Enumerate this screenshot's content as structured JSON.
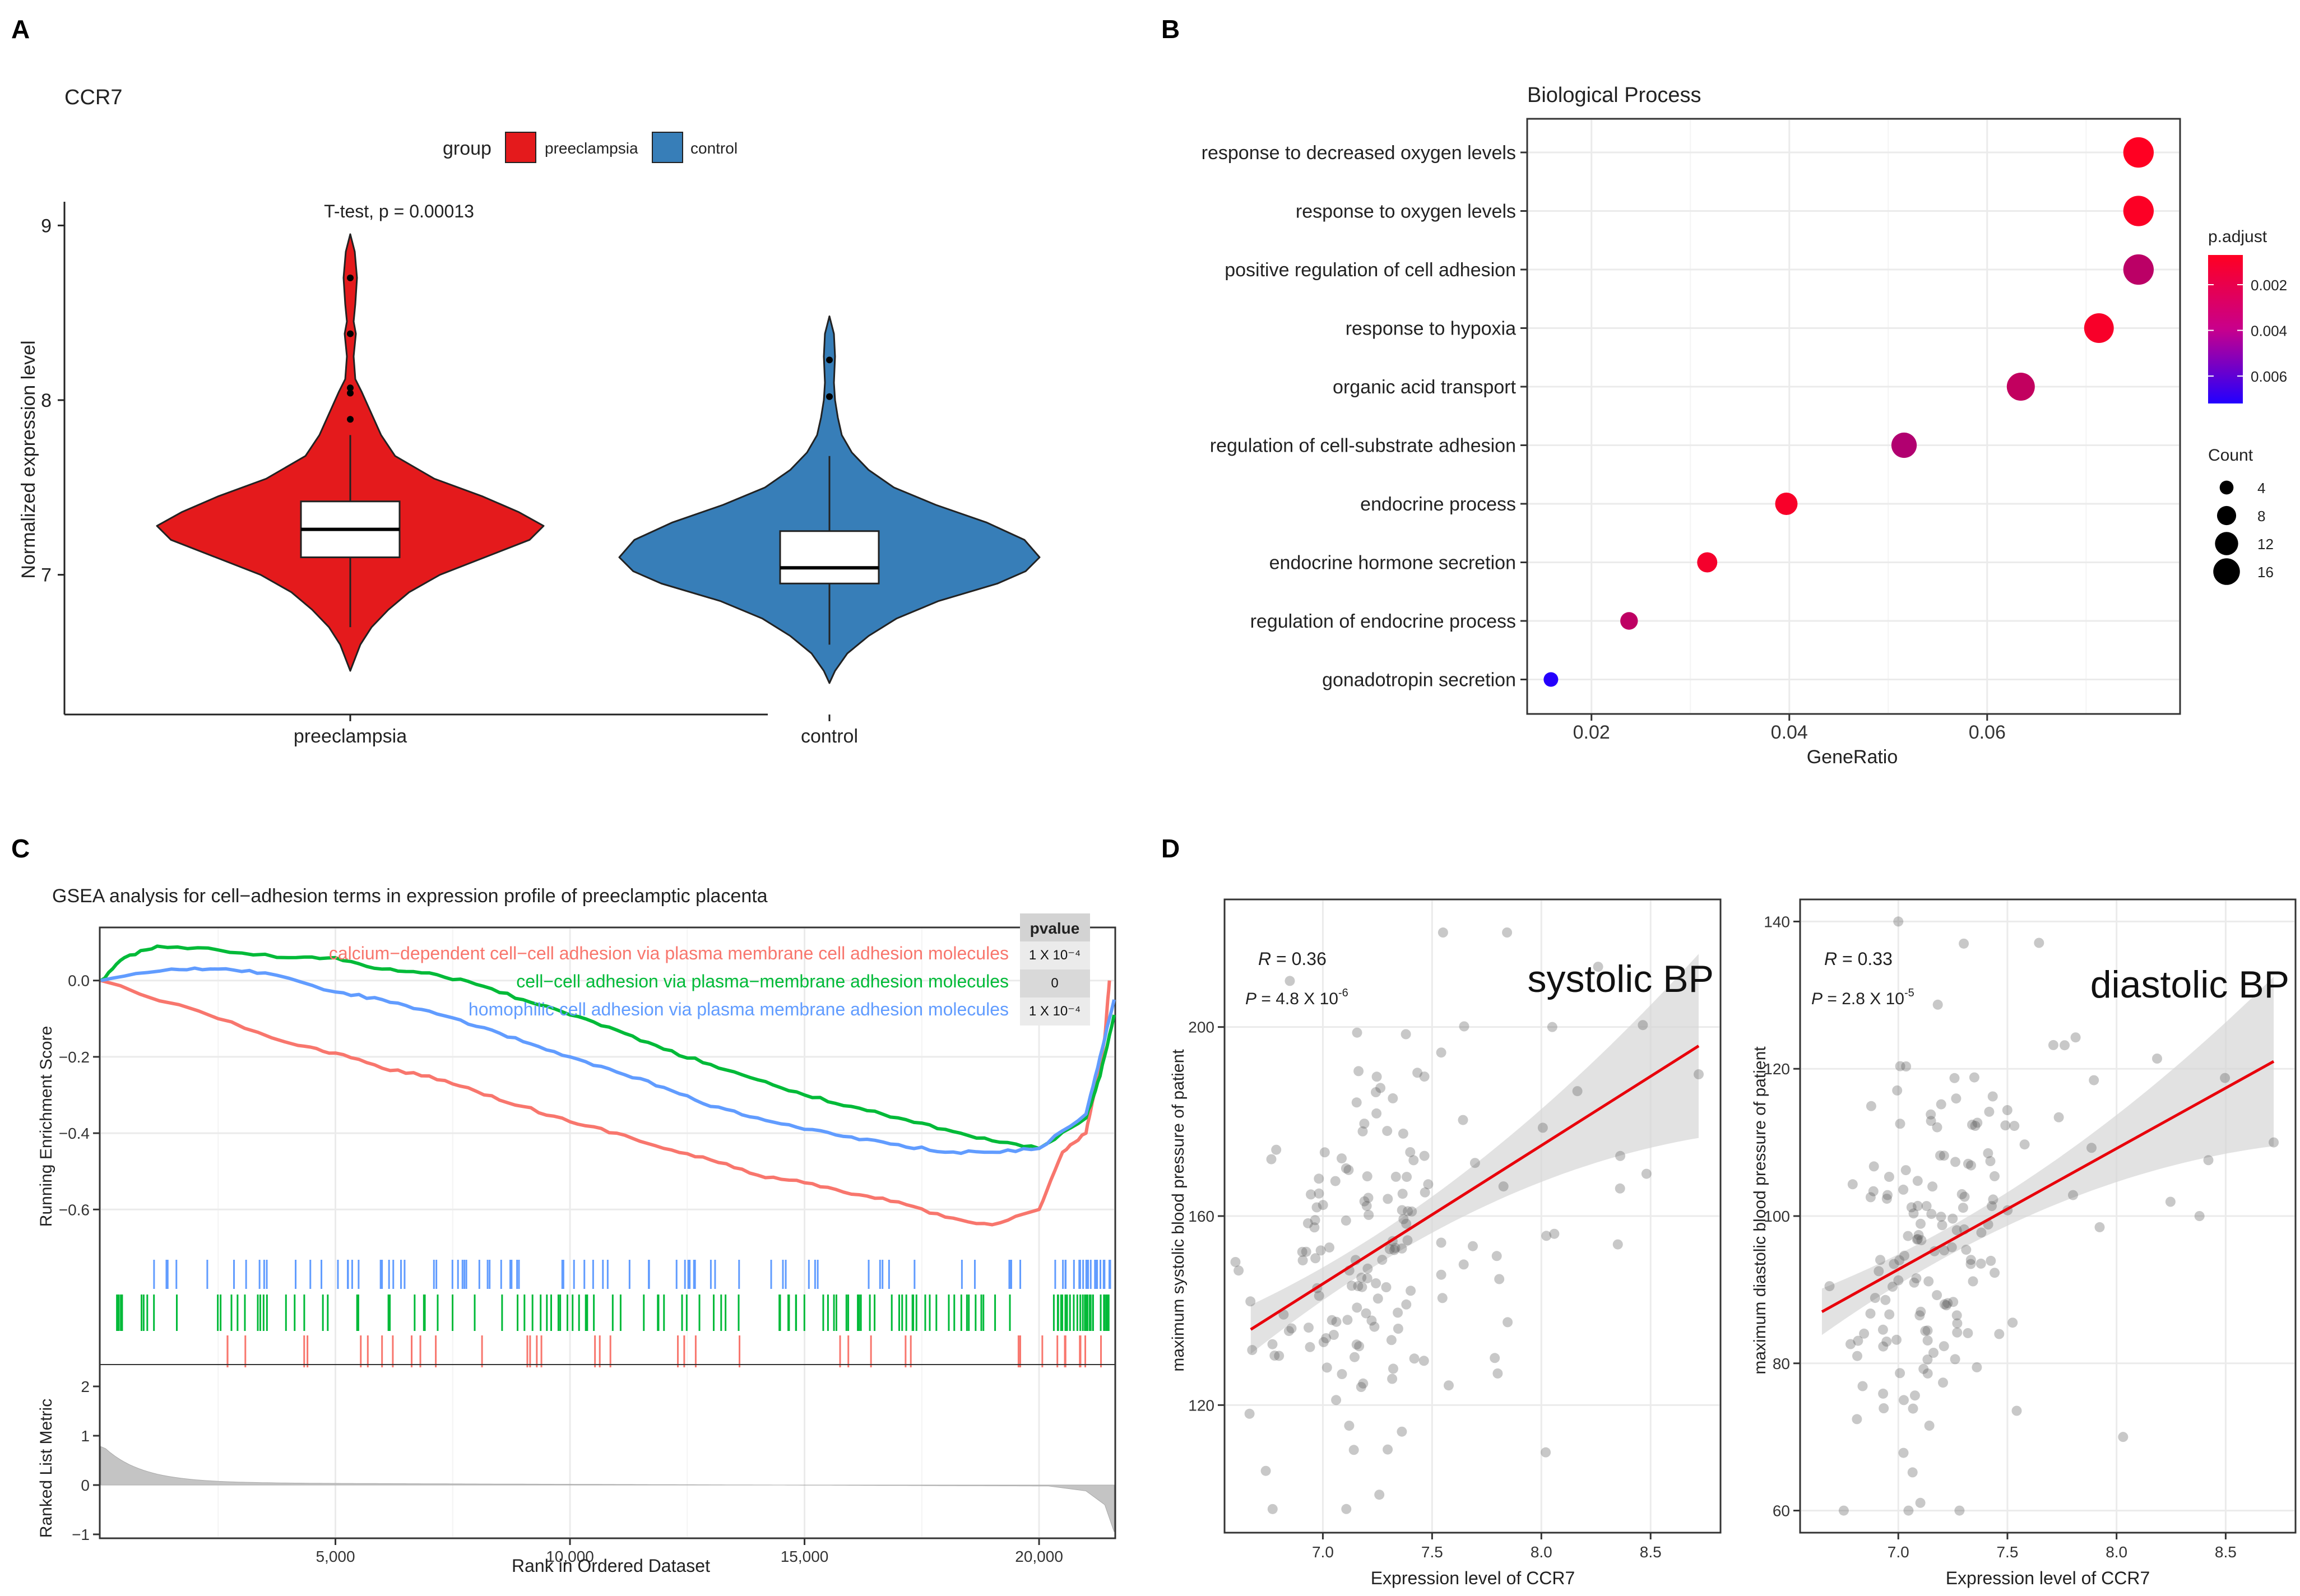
{
  "figure": {
    "panel_labels": [
      "A",
      "B",
      "C",
      "D"
    ]
  },
  "chart_data": [
    {
      "id": "A",
      "type": "violin",
      "title": "CCR7",
      "legend_title": "group",
      "groups": [
        {
          "name": "preeclampsia",
          "color": "#E41A1C",
          "median": 7.26,
          "q1": 7.1,
          "q3": 7.42,
          "whisker_low": 6.7,
          "whisker_high": 7.8,
          "min": 6.45,
          "max": 8.95,
          "outliers": [
            8.7,
            8.38,
            8.07,
            8.04,
            7.89
          ]
        },
        {
          "name": "control",
          "color": "#377EB8",
          "median": 7.04,
          "q1": 6.95,
          "q3": 7.25,
          "whisker_low": 6.6,
          "whisker_high": 7.68,
          "min": 6.38,
          "max": 8.48,
          "outliers": [
            8.23,
            8.02
          ]
        }
      ],
      "annotation": "T-test, p = 0.00013",
      "ylabel": "Normalized expression level",
      "ylim": [
        6.2,
        9.2
      ],
      "yticks": [
        7,
        8,
        9
      ],
      "ytick_labels": [
        "7",
        "8",
        "9"
      ],
      "xtick_labels": [
        "preeclampsia",
        "control"
      ]
    },
    {
      "id": "B",
      "type": "scatter",
      "title": "Biological Process",
      "xlabel": "GeneRatio",
      "xlim": [
        0.0135,
        0.0795
      ],
      "xticks": [
        0.02,
        0.04,
        0.06
      ],
      "xtick_labels": [
        "0.02",
        "0.04",
        "0.06"
      ],
      "terms": [
        {
          "label": "response to decreased oxygen levels",
          "generatio": 0.0753,
          "count": 19,
          "padj": 0.0007
        },
        {
          "label": "response to oxygen levels",
          "generatio": 0.0753,
          "count": 19,
          "padj": 0.0008
        },
        {
          "label": "positive regulation of cell adhesion",
          "generatio": 0.0753,
          "count": 19,
          "padj": 0.0027
        },
        {
          "label": "response to hypoxia",
          "generatio": 0.0713,
          "count": 18,
          "padj": 0.0009
        },
        {
          "label": "organic acid transport",
          "generatio": 0.0634,
          "count": 16,
          "padj": 0.0025
        },
        {
          "label": "regulation of cell-substrate adhesion",
          "generatio": 0.0516,
          "count": 13,
          "padj": 0.003
        },
        {
          "label": "endocrine process",
          "generatio": 0.0397,
          "count": 10,
          "padj": 0.0009
        },
        {
          "label": "endocrine hormone secretion",
          "generatio": 0.0317,
          "count": 8,
          "padj": 0.001
        },
        {
          "label": "regulation of endocrine process",
          "generatio": 0.0238,
          "count": 6,
          "padj": 0.0026
        },
        {
          "label": "gonadotropin secretion",
          "generatio": 0.0159,
          "count": 4,
          "padj": 0.0071
        }
      ],
      "color_legend": {
        "title": "p.adjust",
        "range": [
          0.0007,
          0.0072
        ],
        "ticks": [
          0.002,
          0.004,
          0.006
        ],
        "tick_labels": [
          "0.002",
          "0.004",
          "0.006"
        ],
        "low_color": "#FF0022",
        "high_color": "#2200FF"
      },
      "size_legend": {
        "title": "Count",
        "values": [
          4,
          8,
          12,
          16
        ],
        "labels": [
          "4",
          "8",
          "12",
          "16"
        ]
      }
    },
    {
      "id": "C",
      "type": "line",
      "title": "GSEA analysis for cell−adhesion terms in expression profile of preeclamptic placenta",
      "xlabel": "Rank in Ordered Dataset",
      "ylabel": "Running Enrichment Score",
      "ylabel2": "Ranked List Metric",
      "xlim": [
        0,
        21600
      ],
      "xticks": [
        5000,
        10000,
        15000,
        20000
      ],
      "xtick_labels": [
        "5,000",
        "10,000",
        "15,000",
        "20,000"
      ],
      "ylim": [
        -0.72,
        0.12
      ],
      "yticks": [
        0.0,
        -0.2,
        -0.4,
        -0.6
      ],
      "ytick_labels": [
        "0.0",
        "−0.2",
        "−0.4",
        "−0.6"
      ],
      "metric_ticks": [
        2,
        1,
        0,
        -1
      ],
      "metric_tick_labels": [
        "2",
        "1",
        "0",
        "−1"
      ],
      "pvalue_header": "pvalue",
      "series": [
        {
          "name": "calcium−dependent cell−cell adhesion via plasma membrane cell adhesion molecules",
          "color": "#F8766D",
          "pvalue": "1 X 10⁻⁴",
          "x": [
            0,
            2500,
            4200,
            5000,
            6000,
            7000,
            8000,
            9000,
            10000,
            11000,
            12000,
            13000,
            14000,
            15000,
            16000,
            17000,
            18000,
            19000,
            20000,
            20500,
            21000,
            21200,
            21400,
            21500
          ],
          "values": [
            0.0,
            -0.1,
            -0.17,
            -0.19,
            -0.23,
            -0.25,
            -0.29,
            -0.33,
            -0.37,
            -0.4,
            -0.44,
            -0.47,
            -0.51,
            -0.53,
            -0.56,
            -0.58,
            -0.62,
            -0.64,
            -0.6,
            -0.45,
            -0.4,
            -0.28,
            -0.15,
            0.0
          ]
        },
        {
          "name": "cell−cell adhesion via plasma−membrane adhesion molecules",
          "color": "#00BA38",
          "pvalue": "0",
          "x": [
            0,
            500,
            1200,
            2500,
            4000,
            5000,
            6000,
            7000,
            8000,
            9000,
            10000,
            11000,
            12000,
            13000,
            14000,
            15000,
            16000,
            17000,
            18000,
            19000,
            20000,
            21000,
            21300,
            21600
          ],
          "values": [
            0.0,
            0.06,
            0.09,
            0.08,
            0.06,
            0.06,
            0.03,
            0.02,
            -0.01,
            -0.05,
            -0.09,
            -0.13,
            -0.18,
            -0.22,
            -0.26,
            -0.3,
            -0.33,
            -0.36,
            -0.39,
            -0.42,
            -0.44,
            -0.36,
            -0.25,
            -0.09
          ]
        },
        {
          "name": "homophilic cell adhesion via plasma membrane adhesion molecules",
          "color": "#619CFF",
          "pvalue": "1 X 10⁻⁴",
          "x": [
            0,
            1500,
            2500,
            3500,
            5000,
            6000,
            7000,
            8000,
            9000,
            10000,
            11000,
            12000,
            13000,
            14000,
            15000,
            16000,
            17000,
            18000,
            19000,
            20000,
            21000,
            21300,
            21600
          ],
          "values": [
            0.0,
            0.03,
            0.03,
            0.02,
            -0.03,
            -0.05,
            -0.08,
            -0.12,
            -0.16,
            -0.2,
            -0.24,
            -0.28,
            -0.33,
            -0.36,
            -0.39,
            -0.41,
            -0.43,
            -0.45,
            -0.45,
            -0.44,
            -0.35,
            -0.2,
            -0.05
          ]
        }
      ]
    },
    {
      "id": "D1",
      "type": "scatter",
      "big_label": "systolic BP",
      "r_label": "R",
      "r_value": "= 0.36",
      "p_label": "P",
      "p_value": "= 4.8 X 10",
      "p_exp": "-6",
      "xlabel": "Expression level of CCR7",
      "ylabel": "maximum systolic blood pressure of patient",
      "xlim": [
        6.55,
        8.82
      ],
      "ylim": [
        93,
        227
      ],
      "xticks": [
        7.0,
        7.5,
        8.0,
        8.5
      ],
      "xtick_labels": [
        "7.0",
        "7.5",
        "8.0",
        "8.5"
      ],
      "yticks": [
        120,
        160,
        200
      ],
      "ytick_labels": [
        "120",
        "160",
        "200"
      ],
      "fit": {
        "x0": 6.67,
        "y0": 136,
        "x1": 8.72,
        "y1": 196
      }
    },
    {
      "id": "D2",
      "type": "scatter",
      "big_label": "diastolic BP",
      "r_label": "R",
      "r_value": "= 0.33",
      "p_label": "P",
      "p_value": "= 2.8 X 10",
      "p_exp": "-5",
      "xlabel": "Expression level of CCR7",
      "ylabel": "maximum diastolic blood pressure of patient",
      "xlim": [
        6.55,
        8.82
      ],
      "ylim": [
        57,
        143
      ],
      "xticks": [
        7.0,
        7.5,
        8.0,
        8.5
      ],
      "xtick_labels": [
        "7.0",
        "7.5",
        "8.0",
        "8.5"
      ],
      "yticks": [
        60,
        80,
        100,
        120,
        140
      ],
      "ytick_labels": [
        "60",
        "80",
        "100",
        "120",
        "140"
      ],
      "fit": {
        "x0": 6.65,
        "y0": 87,
        "x1": 8.72,
        "y1": 121
      }
    }
  ]
}
